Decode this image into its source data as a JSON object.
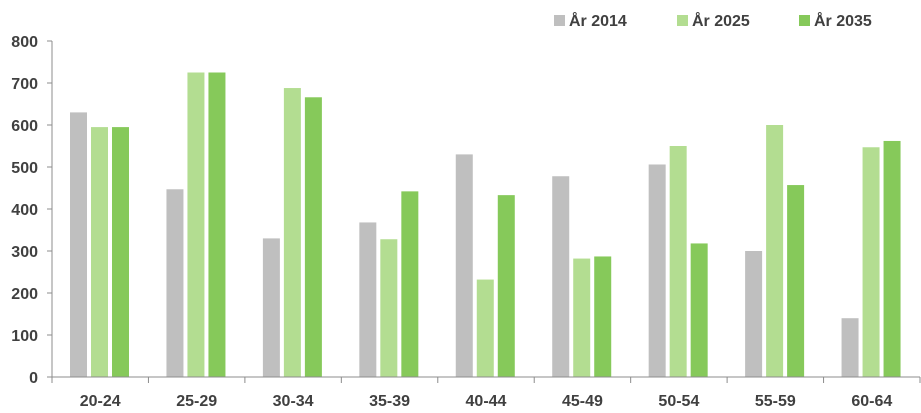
{
  "chart_data": {
    "type": "bar",
    "title": "",
    "xlabel": "",
    "ylabel": "",
    "ylim": [
      0,
      800
    ],
    "yticks": [
      0,
      100,
      200,
      300,
      400,
      500,
      600,
      700,
      800
    ],
    "grid": false,
    "legend_position": "top-right",
    "categories": [
      "20-24",
      "25-29",
      "30-34",
      "35-39",
      "40-44",
      "45-49",
      "50-54",
      "55-59",
      "60-64"
    ],
    "series": [
      {
        "name": "År 2014",
        "color": "#bfbfbf",
        "values": [
          630,
          447,
          330,
          368,
          530,
          478,
          506,
          300,
          140
        ]
      },
      {
        "name": "År 2025",
        "color": "#b3dd91",
        "values": [
          595,
          725,
          688,
          328,
          232,
          282,
          550,
          600,
          547
        ]
      },
      {
        "name": "År 2035",
        "color": "#86c95a",
        "values": [
          595,
          725,
          666,
          442,
          433,
          287,
          318,
          457,
          562
        ]
      }
    ]
  }
}
